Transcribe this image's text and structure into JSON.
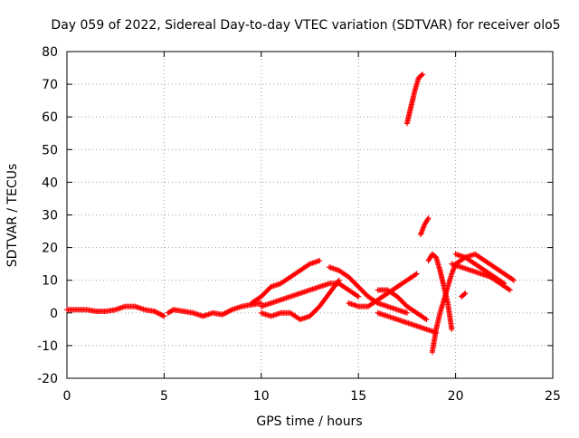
{
  "chart_data": {
    "type": "scatter",
    "title": "Day 059 of 2022, Sidereal Day-to-day VTEC variation (SDTVAR) for receiver olo5",
    "xlabel": "GPS time / hours",
    "ylabel": "SDTVAR / TECUs",
    "xlim": [
      0,
      25
    ],
    "ylim": [
      -20,
      80
    ],
    "xticks": [
      0,
      5,
      10,
      15,
      20,
      25
    ],
    "yticks": [
      -20,
      -10,
      0,
      10,
      20,
      30,
      40,
      50,
      60,
      70,
      80
    ],
    "grid": true,
    "marker": "plus",
    "series": [
      {
        "name": "SDTVAR",
        "color": "#ff0000",
        "segments": [
          {
            "x": [
              0,
              0.5,
              1,
              1.5,
              2,
              2.5,
              3,
              3.5,
              4,
              4.5,
              5
            ],
            "y": [
              1,
              1,
              1,
              0.5,
              0.5,
              1,
              2,
              2,
              1,
              0.5,
              -1
            ]
          },
          {
            "x": [
              5.2,
              5.5,
              6,
              6.5,
              7,
              7.5,
              8,
              8.5,
              9,
              9.5,
              10
            ],
            "y": [
              0,
              1,
              0.5,
              0,
              -1,
              0,
              -0.5,
              1,
              2,
              2.5,
              3
            ]
          },
          {
            "x": [
              9.5,
              10,
              10.5,
              11,
              11.5,
              12,
              12.5,
              13
            ],
            "y": [
              3,
              5,
              8,
              9,
              11,
              13,
              15,
              16
            ]
          },
          {
            "x": [
              10,
              10.5,
              11,
              11.5,
              12,
              12.5,
              13,
              13.5,
              14,
              14.5,
              15
            ],
            "y": [
              2,
              3,
              4,
              5,
              6,
              7,
              8,
              9,
              9,
              7,
              5
            ]
          },
          {
            "x": [
              10,
              10.5,
              11,
              11.5,
              12,
              12.5,
              13,
              13.5,
              14
            ],
            "y": [
              0,
              -1,
              0,
              0,
              -2,
              -1,
              2,
              6,
              10
            ]
          },
          {
            "x": [
              13.5,
              14,
              14.5,
              15,
              15.5,
              16,
              16.5,
              17,
              17.5
            ],
            "y": [
              14,
              13,
              11,
              8,
              5,
              3,
              2,
              1,
              0
            ]
          },
          {
            "x": [
              14.5,
              15,
              15.5,
              16,
              16.5,
              17,
              17.5,
              18
            ],
            "y": [
              3,
              2,
              2,
              4,
              6,
              8,
              10,
              12
            ]
          },
          {
            "x": [
              16,
              16.5,
              17,
              17.5,
              18,
              18.5
            ],
            "y": [
              7,
              7,
              5,
              2,
              0,
              -2
            ]
          },
          {
            "x": [
              16,
              16.5,
              17,
              17.5,
              18,
              18.5,
              19
            ],
            "y": [
              0,
              -1,
              -2,
              -3,
              -4,
              -5,
              -6
            ]
          },
          {
            "x": [
              17.5,
              17.7,
              17.9,
              18.1,
              18.3
            ],
            "y": [
              58,
              63,
              68,
              72,
              73
            ]
          },
          {
            "x": [
              18.2,
              18.4,
              18.6
            ],
            "y": [
              24,
              27,
              29
            ]
          },
          {
            "x": [
              18.6,
              18.8,
              19,
              19.2,
              19.4,
              19.6,
              19.8
            ],
            "y": [
              16,
              18,
              17,
              13,
              8,
              3,
              -5
            ]
          },
          {
            "x": [
              18.8,
              19,
              19.2,
              19.4,
              19.6,
              19.8,
              20,
              20.5,
              21,
              21.5,
              22,
              22.5,
              23
            ],
            "y": [
              -12,
              -5,
              0,
              4,
              8,
              12,
              15,
              17,
              18,
              16,
              14,
              12,
              10
            ]
          },
          {
            "x": [
              19.8,
              20.3,
              20.8,
              21.3,
              21.8,
              22.3,
              22.8
            ],
            "y": [
              15,
              14,
              13,
              12,
              11,
              9,
              7
            ]
          },
          {
            "x": [
              20,
              20.5,
              21,
              21.5,
              22,
              22.5
            ],
            "y": [
              18,
              17,
              15,
              13,
              11,
              9
            ]
          },
          {
            "x": [
              20.3,
              20.5
            ],
            "y": [
              5,
              6
            ]
          }
        ]
      }
    ]
  }
}
